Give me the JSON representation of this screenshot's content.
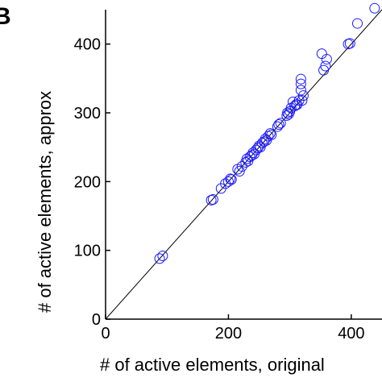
{
  "figure": {
    "panel_letter": "B"
  },
  "chart_data": {
    "type": "scatter",
    "title": "",
    "xlabel": "# of active elements, original",
    "ylabel": "# of active elements, approx",
    "xlim": [
      0,
      450
    ],
    "ylim": [
      0,
      450
    ],
    "xticks": [
      0,
      200,
      400
    ],
    "yticks": [
      0,
      100,
      200,
      300,
      400
    ],
    "grid": false,
    "legend": "none",
    "marker": "open-circle",
    "marker_color": "#1a1aff",
    "line_color": "#000000",
    "reference_line": {
      "x": [
        0,
        450
      ],
      "y": [
        0,
        450
      ]
    },
    "points": [
      {
        "x": 88,
        "y": 88
      },
      {
        "x": 93,
        "y": 92
      },
      {
        "x": 172,
        "y": 173
      },
      {
        "x": 175,
        "y": 174
      },
      {
        "x": 188,
        "y": 190
      },
      {
        "x": 195,
        "y": 197
      },
      {
        "x": 200,
        "y": 200
      },
      {
        "x": 203,
        "y": 204
      },
      {
        "x": 205,
        "y": 203
      },
      {
        "x": 215,
        "y": 218
      },
      {
        "x": 218,
        "y": 215
      },
      {
        "x": 222,
        "y": 222
      },
      {
        "x": 228,
        "y": 228
      },
      {
        "x": 230,
        "y": 233
      },
      {
        "x": 232,
        "y": 230
      },
      {
        "x": 235,
        "y": 236
      },
      {
        "x": 238,
        "y": 238
      },
      {
        "x": 240,
        "y": 242
      },
      {
        "x": 242,
        "y": 240
      },
      {
        "x": 245,
        "y": 246
      },
      {
        "x": 248,
        "y": 249
      },
      {
        "x": 250,
        "y": 252
      },
      {
        "x": 252,
        "y": 250
      },
      {
        "x": 255,
        "y": 256
      },
      {
        "x": 258,
        "y": 258
      },
      {
        "x": 260,
        "y": 262
      },
      {
        "x": 262,
        "y": 260
      },
      {
        "x": 265,
        "y": 266
      },
      {
        "x": 268,
        "y": 270
      },
      {
        "x": 270,
        "y": 268
      },
      {
        "x": 280,
        "y": 280
      },
      {
        "x": 282,
        "y": 283
      },
      {
        "x": 285,
        "y": 285
      },
      {
        "x": 295,
        "y": 296
      },
      {
        "x": 296,
        "y": 300
      },
      {
        "x": 298,
        "y": 298
      },
      {
        "x": 300,
        "y": 302
      },
      {
        "x": 302,
        "y": 307
      },
      {
        "x": 305,
        "y": 316
      },
      {
        "x": 308,
        "y": 310
      },
      {
        "x": 310,
        "y": 312
      },
      {
        "x": 312,
        "y": 312
      },
      {
        "x": 315,
        "y": 318
      },
      {
        "x": 318,
        "y": 333
      },
      {
        "x": 318,
        "y": 342
      },
      {
        "x": 318,
        "y": 349
      },
      {
        "x": 320,
        "y": 318
      },
      {
        "x": 322,
        "y": 325
      },
      {
        "x": 352,
        "y": 386
      },
      {
        "x": 355,
        "y": 362
      },
      {
        "x": 358,
        "y": 368
      },
      {
        "x": 360,
        "y": 378
      },
      {
        "x": 395,
        "y": 400
      },
      {
        "x": 398,
        "y": 401
      },
      {
        "x": 410,
        "y": 430
      },
      {
        "x": 438,
        "y": 452
      }
    ]
  }
}
